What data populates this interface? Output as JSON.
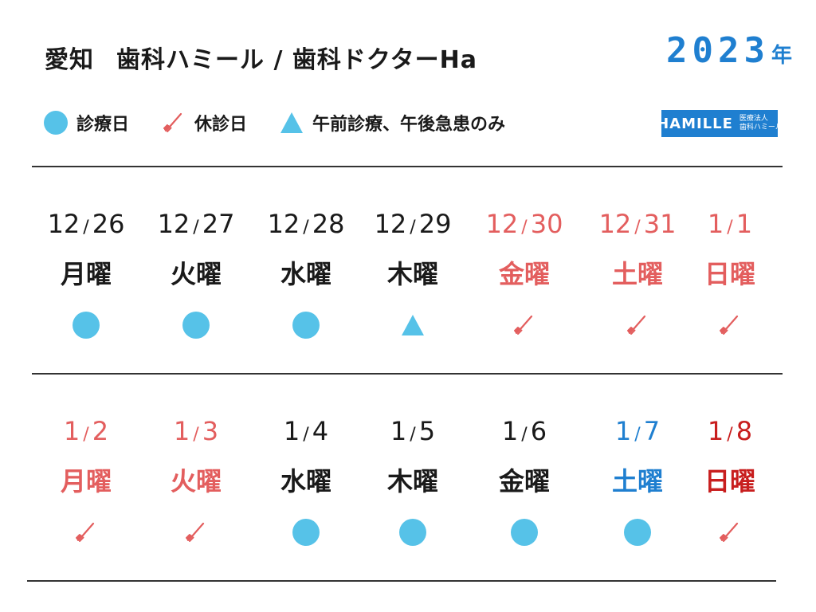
{
  "header": {
    "title_region": "愛知",
    "title_name": "歯科ハミール / 歯科ドクターHa",
    "year_number": "2023",
    "year_unit": "年"
  },
  "legend": [
    {
      "icon": "circle-icon",
      "label": "診療日"
    },
    {
      "icon": "toothbrush-icon",
      "label": "休診日"
    },
    {
      "icon": "triangle-icon",
      "label": "午前診療、午後急患のみ"
    }
  ],
  "logo": {
    "brand": "HAMILLE",
    "sub_line1": "医療法人",
    "sub_line2": "歯科ハミール"
  },
  "colors": {
    "open": "#56c2e8",
    "closed": "#e35e5e",
    "black": "#1a1a1a",
    "saturday_blue": "#1f7fd0",
    "sunday_red": "#c81e1e",
    "brand": "#1f7fd0"
  },
  "weeks": [
    {
      "days": [
        {
          "month": "12",
          "day": "26",
          "weekday": "月曜",
          "status": "open",
          "color": "#1a1a1a"
        },
        {
          "month": "12",
          "day": "27",
          "weekday": "火曜",
          "status": "open",
          "color": "#1a1a1a"
        },
        {
          "month": "12",
          "day": "28",
          "weekday": "水曜",
          "status": "open",
          "color": "#1a1a1a"
        },
        {
          "month": "12",
          "day": "29",
          "weekday": "木曜",
          "status": "half",
          "color": "#1a1a1a"
        },
        {
          "month": "12",
          "day": "30",
          "weekday": "金曜",
          "status": "closed",
          "color": "#e35e5e"
        },
        {
          "month": "12",
          "day": "31",
          "weekday": "土曜",
          "status": "closed",
          "color": "#e35e5e"
        },
        {
          "month": "1",
          "day": "1",
          "weekday": "日曜",
          "status": "closed",
          "color": "#e35e5e"
        }
      ]
    },
    {
      "days": [
        {
          "month": "1",
          "day": "2",
          "weekday": "月曜",
          "status": "closed",
          "color": "#e35e5e"
        },
        {
          "month": "1",
          "day": "3",
          "weekday": "火曜",
          "status": "closed",
          "color": "#e35e5e"
        },
        {
          "month": "1",
          "day": "4",
          "weekday": "水曜",
          "status": "open",
          "color": "#1a1a1a"
        },
        {
          "month": "1",
          "day": "5",
          "weekday": "木曜",
          "status": "open",
          "color": "#1a1a1a"
        },
        {
          "month": "1",
          "day": "6",
          "weekday": "金曜",
          "status": "open",
          "color": "#1a1a1a"
        },
        {
          "month": "1",
          "day": "7",
          "weekday": "土曜",
          "status": "open",
          "color": "#1f7fd0"
        },
        {
          "month": "1",
          "day": "8",
          "weekday": "日曜",
          "status": "closed",
          "color": "#c81e1e"
        }
      ]
    }
  ]
}
